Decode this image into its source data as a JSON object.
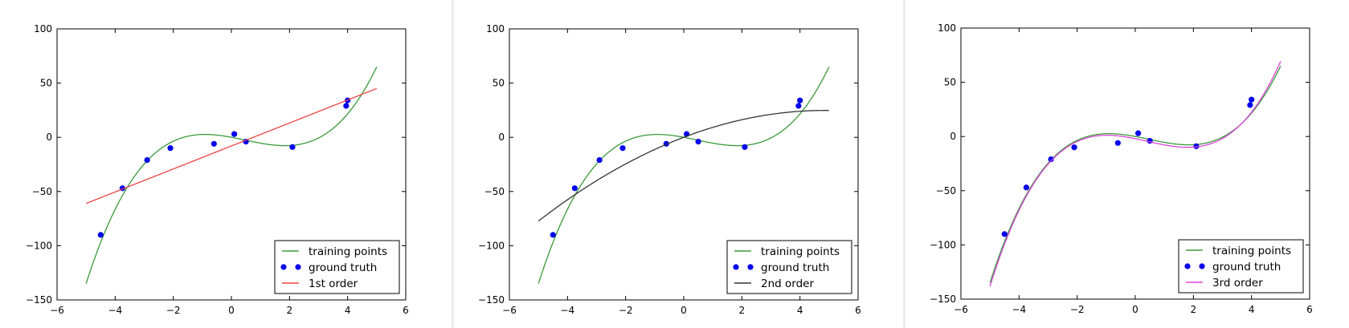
{
  "chart_data": [
    {
      "type": "line",
      "xlim": [
        -6,
        6
      ],
      "ylim": [
        -150,
        100
      ],
      "xticks": [
        "−6",
        "−4",
        "−2",
        "0",
        "2",
        "4",
        "6"
      ],
      "yticks": [
        "100",
        "50",
        "0",
        "−50",
        "−100",
        "−150"
      ],
      "grid": false,
      "legend_position": "lower-right",
      "series": [
        {
          "name": "training points",
          "kind": "curve",
          "color": "#3a9a3a",
          "coef": [
            0,
            -5,
            -1.4,
            1
          ]
        },
        {
          "name": "ground truth",
          "kind": "points",
          "color": "#0000ee",
          "points": [
            [
              -4.5,
              -90
            ],
            [
              -3.75,
              -47
            ],
            [
              -2.9,
              -21
            ],
            [
              -2.1,
              -10
            ],
            [
              -0.6,
              -6
            ],
            [
              0.1,
              3
            ],
            [
              0.5,
              -4
            ],
            [
              2.1,
              -9
            ],
            [
              3.95,
              29
            ],
            [
              4.0,
              34
            ]
          ]
        },
        {
          "name": "1st order",
          "kind": "curve",
          "color": "#ee4444",
          "coef": [
            -8,
            10.6
          ]
        }
      ]
    },
    {
      "type": "line",
      "xlim": [
        -6,
        6
      ],
      "ylim": [
        -150,
        100
      ],
      "xticks": [
        "−6",
        "−4",
        "−2",
        "0",
        "2",
        "4",
        "6"
      ],
      "yticks": [
        "100",
        "50",
        "0",
        "−50",
        "−100",
        "−150"
      ],
      "grid": false,
      "legend_position": "lower-right",
      "series": [
        {
          "name": "training points",
          "kind": "curve",
          "color": "#3a9a3a",
          "coef": [
            0,
            -5,
            -1.4,
            1
          ]
        },
        {
          "name": "ground truth",
          "kind": "points",
          "color": "#0000ee",
          "points": [
            [
              -4.5,
              -90
            ],
            [
              -3.75,
              -47
            ],
            [
              -2.9,
              -21
            ],
            [
              -2.1,
              -10
            ],
            [
              -0.6,
              -6
            ],
            [
              0.1,
              3
            ],
            [
              0.5,
              -4
            ],
            [
              2.1,
              -9
            ],
            [
              3.95,
              29
            ],
            [
              4.0,
              34
            ]
          ]
        },
        {
          "name": "2nd order",
          "kind": "curve",
          "color": "#333333",
          "coef": [
            0,
            10.2,
            -1.05
          ]
        }
      ]
    },
    {
      "type": "line",
      "xlim": [
        -6,
        6
      ],
      "ylim": [
        -150,
        100
      ],
      "xticks": [
        "−6",
        "−4",
        "−2",
        "0",
        "2",
        "4",
        "6"
      ],
      "yticks": [
        "100",
        "50",
        "0",
        "−50",
        "−100",
        "−150"
      ],
      "grid": false,
      "legend_position": "lower-right",
      "series": [
        {
          "name": "training points",
          "kind": "curve",
          "color": "#3a9a3a",
          "coef": [
            0,
            -5,
            -1.4,
            1
          ]
        },
        {
          "name": "ground truth",
          "kind": "points",
          "color": "#0000ee",
          "points": [
            [
              -4.5,
              -90
            ],
            [
              -3.75,
              -47
            ],
            [
              -2.9,
              -21
            ],
            [
              -2.1,
              -10
            ],
            [
              -0.6,
              -6
            ],
            [
              0.1,
              3
            ],
            [
              0.5,
              -4
            ],
            [
              2.1,
              -9
            ],
            [
              3.95,
              29
            ],
            [
              4.0,
              34
            ]
          ]
        },
        {
          "name": "3rd order",
          "kind": "curve",
          "color": "#dd44dd",
          "coef": [
            -2,
            -5.5,
            -1.3,
            1.05
          ]
        }
      ]
    }
  ]
}
